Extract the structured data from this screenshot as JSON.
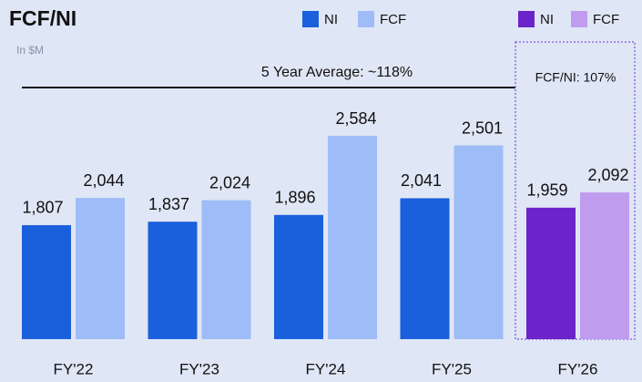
{
  "chart_data": {
    "type": "bar",
    "title": "FCF/NI",
    "subtitle": "In $M",
    "annotations": [
      "5 Year Average: ~118%",
      "FCF/NI: 107%"
    ],
    "categories": [
      "FY'22",
      "FY'23",
      "FY'24",
      "FY'25",
      "FY'26"
    ],
    "series": [
      {
        "name": "NI",
        "color": "#1a5fdc",
        "values": [
          1807,
          1837,
          1896,
          2041,
          null
        ],
        "value_labels": [
          "1,807",
          "1,837",
          "1,896",
          "2,041",
          null
        ]
      },
      {
        "name": "FCF",
        "color": "#9ebcf7",
        "values": [
          2044,
          2024,
          2584,
          2501,
          null
        ],
        "value_labels": [
          "2,044",
          "2,024",
          "2,584",
          "2,501",
          null
        ]
      },
      {
        "name": "NI",
        "color": "#6a24c9",
        "values": [
          null,
          null,
          null,
          null,
          1959
        ],
        "value_labels": [
          null,
          null,
          null,
          null,
          "1,959"
        ]
      },
      {
        "name": "FCF",
        "color": "#bf9cee",
        "values": [
          null,
          null,
          null,
          null,
          2092
        ],
        "value_labels": [
          null,
          null,
          null,
          null,
          "2,092"
        ]
      }
    ],
    "ylim": [
      815,
      2870
    ]
  }
}
